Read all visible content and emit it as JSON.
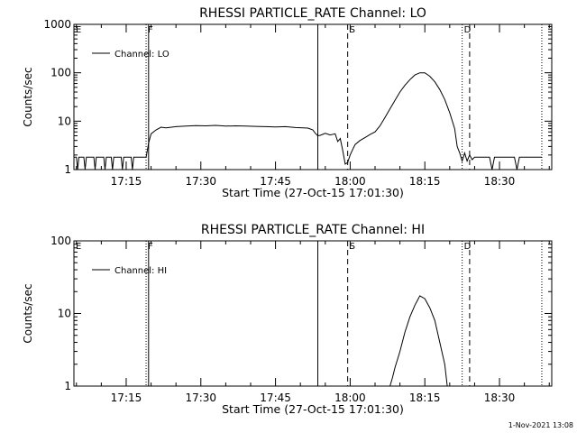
{
  "footer": {
    "timestamp": "1-Nov-2021 13:08"
  },
  "chart_data": [
    {
      "type": "line",
      "title": "RHESSI PARTICLE_RATE Channel: LO",
      "xlabel": "Start Time (27-Oct-15 17:01:30)",
      "ylabel": "Counts/sec",
      "y_scale": "log",
      "ylim": [
        1,
        1000
      ],
      "xlim": [
        "17:04:30",
        "18:40:30"
      ],
      "y_tick_labels": [
        "1",
        "10",
        "100",
        "1000"
      ],
      "x_tick_labels": [
        "17:15",
        "17:30",
        "17:45",
        "18:00",
        "18:15",
        "18:30"
      ],
      "legend": {
        "position": "top-left",
        "entries": [
          "Channel: LO"
        ]
      },
      "markers": [
        {
          "label": "E",
          "time": "17:04:30",
          "style": "dotted"
        },
        {
          "label": "F",
          "time": "17:19:00",
          "style": "dotted"
        },
        {
          "label": "",
          "time": "17:19:30",
          "style": "solid"
        },
        {
          "label": "",
          "time": "17:53:30",
          "style": "solid"
        },
        {
          "label": "S",
          "time": "17:59:30",
          "style": "dashed"
        },
        {
          "label": "D",
          "time": "18:22:30",
          "style": "dotted"
        },
        {
          "label": "",
          "time": "18:24:00",
          "style": "dashed"
        },
        {
          "label": "",
          "time": "18:38:30",
          "style": "dotted"
        }
      ],
      "series": [
        {
          "name": "Channel: LO",
          "segments": [
            {
              "time": [
                "17:04:30",
                "17:05:00",
                "17:05:15",
                "17:05:30",
                "17:06:00",
                "17:06:30",
                "17:06:45",
                "17:07:00",
                "17:07:30",
                "17:08:30",
                "17:08:45",
                "17:09:00",
                "17:09:30",
                "17:10:30",
                "17:10:45",
                "17:11:00",
                "17:11:30",
                "17:12:00",
                "17:12:15",
                "17:12:30",
                "17:13:00",
                "17:14:00",
                "17:14:15",
                "17:14:30",
                "17:15:00",
                "17:16:00",
                "17:16:15",
                "17:16:30",
                "17:17:00",
                "17:18:00",
                "17:18:30",
                "17:19:00",
                "17:19:30",
                "17:20:00",
                "17:21:00",
                "17:22:00",
                "17:23:00",
                "17:25:00",
                "17:27:00",
                "17:29:00",
                "17:31:00",
                "17:33:00",
                "17:35:00",
                "17:37:00",
                "17:39:00",
                "17:41:00",
                "17:43:00",
                "17:45:00",
                "17:47:00",
                "17:49:00",
                "17:50:30",
                "17:51:30",
                "17:52:30",
                "17:53:00",
                "17:53:30",
                "17:54:00",
                "17:55:00",
                "17:56:00",
                "17:57:00",
                "17:57:30",
                "17:58:00",
                "17:58:30",
                "17:59:00",
                "17:59:30",
                "18:00:00",
                "18:00:30",
                "18:01:00",
                "18:02:00",
                "18:03:00",
                "18:04:00",
                "18:05:00",
                "18:06:00",
                "18:07:00",
                "18:08:00",
                "18:09:00",
                "18:10:00",
                "18:11:00",
                "18:12:00",
                "18:13:00",
                "18:14:00",
                "18:15:00",
                "18:16:00",
                "18:17:00",
                "18:18:00",
                "18:19:00",
                "18:20:00",
                "18:21:00",
                "18:21:30",
                "18:22:00",
                "18:22:30",
                "18:23:00",
                "18:23:30",
                "18:24:00",
                "18:24:30",
                "18:25:00",
                "18:26:00",
                "18:27:00",
                "18:28:00",
                "18:28:30",
                "18:29:00",
                "18:30:00",
                "18:31:00",
                "18:32:00",
                "18:33:00",
                "18:33:30",
                "18:34:00",
                "18:35:00",
                "18:36:00",
                "18:37:00",
                "18:38:00",
                "18:38:30"
              ],
              "value": [
                1.8,
                1.8,
                1,
                1.8,
                1.8,
                1.8,
                1,
                1.8,
                1.8,
                1.8,
                1,
                1.8,
                1.8,
                1.8,
                1,
                1.8,
                1.8,
                1.8,
                1,
                1.8,
                1.8,
                1.8,
                1,
                1.8,
                1.8,
                1.8,
                1,
                1.8,
                1.8,
                1.8,
                1.8,
                1.8,
                3.5,
                5.5,
                6.6,
                7.5,
                7.3,
                7.7,
                7.9,
                8.1,
                8.0,
                8.2,
                7.9,
                8.0,
                7.9,
                7.8,
                7.7,
                7.6,
                7.7,
                7.4,
                7.3,
                7.2,
                6.6,
                5.6,
                5.0,
                5.1,
                5.6,
                5.2,
                5.5,
                3.8,
                4.4,
                2.5,
                1.3,
                1.4,
                2.0,
                2.6,
                3.3,
                4.0,
                4.6,
                5.3,
                6.0,
                8.0,
                12,
                18,
                27,
                40,
                55,
                72,
                90,
                100,
                100,
                85,
                65,
                45,
                28,
                15,
                7,
                3,
                2.2,
                1.5,
                2.2,
                1.5,
                2.0,
                1.6,
                1.8,
                1.8,
                1.8,
                1.8,
                1,
                1.8,
                1.8,
                1.8,
                1.8,
                1.8,
                1,
                1.8,
                1.8,
                1.8,
                1.8,
                1.8,
                1.8
              ]
            }
          ]
        }
      ]
    },
    {
      "type": "line",
      "title": "RHESSI PARTICLE_RATE Channel: HI",
      "xlabel": "Start Time (27-Oct-15 17:01:30)",
      "ylabel": "Counts/sec",
      "y_scale": "log",
      "ylim": [
        1,
        100
      ],
      "xlim": [
        "17:04:30",
        "18:40:30"
      ],
      "y_tick_labels": [
        "1",
        "10",
        "100"
      ],
      "x_tick_labels": [
        "17:15",
        "17:30",
        "17:45",
        "18:00",
        "18:15",
        "18:30"
      ],
      "legend": {
        "position": "top-left",
        "entries": [
          "Channel: HI"
        ]
      },
      "markers": [
        {
          "label": "E",
          "time": "17:04:30",
          "style": "dotted"
        },
        {
          "label": "F",
          "time": "17:19:00",
          "style": "dotted"
        },
        {
          "label": "",
          "time": "17:19:30",
          "style": "solid"
        },
        {
          "label": "",
          "time": "17:53:30",
          "style": "solid"
        },
        {
          "label": "S",
          "time": "17:59:30",
          "style": "dashed"
        },
        {
          "label": "D",
          "time": "18:22:30",
          "style": "dotted"
        },
        {
          "label": "",
          "time": "18:24:00",
          "style": "dashed"
        },
        {
          "label": "",
          "time": "18:38:30",
          "style": "dotted"
        }
      ],
      "series": [
        {
          "name": "Channel: HI",
          "segments": [
            {
              "time": [
                "18:08:00",
                "18:08:30",
                "18:09:00",
                "18:10:00",
                "18:11:00",
                "18:12:00",
                "18:13:00",
                "18:13:30",
                "18:14:00",
                "18:15:00",
                "18:16:00",
                "18:17:00",
                "18:18:00",
                "18:19:00",
                "18:19:30"
              ],
              "value": [
                1.0,
                1.3,
                1.8,
                3.0,
                5.5,
                9.0,
                13,
                15,
                17.5,
                16,
                12,
                8,
                4,
                2,
                1.0
              ]
            }
          ]
        }
      ]
    }
  ]
}
